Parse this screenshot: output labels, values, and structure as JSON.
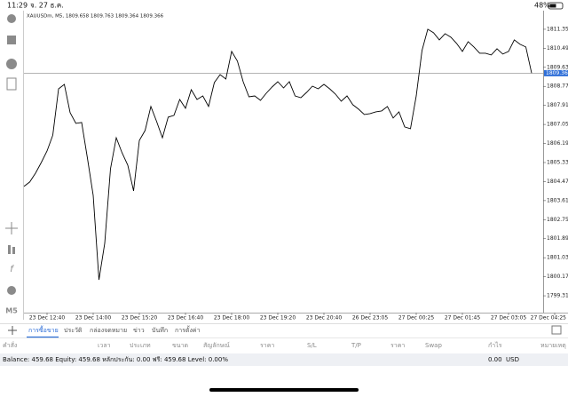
{
  "status_bar": {
    "time": "11:29",
    "date": "จ. 27 ธ.ค.",
    "battery": "48%"
  },
  "sidebar": {
    "timeframe": "M5"
  },
  "chart_data": {
    "type": "line",
    "header": "XAUUSDm, M5, 1809.658 1809.763 1809.364 1809.366",
    "categories": [
      null,
      null,
      null,
      null,
      "23 Dec 12:40",
      null,
      null,
      null,
      null,
      null,
      null,
      null,
      "23 Dec 14:00",
      null,
      null,
      null,
      null,
      null,
      null,
      null,
      "23 Dec 15:20",
      null,
      null,
      null,
      null,
      null,
      null,
      null,
      "23 Dec 16:40",
      null,
      null,
      null,
      null,
      null,
      null,
      null,
      "23 Dec 18:00",
      null,
      null,
      null,
      null,
      null,
      null,
      null,
      "23 Dec 19:20",
      null,
      null,
      null,
      null,
      null,
      null,
      null,
      "23 Dec 20:40",
      null,
      null,
      null,
      null,
      null,
      null,
      null,
      "26 Dec 23:05",
      null,
      null,
      null,
      null,
      null,
      null,
      null,
      "27 Dec 00:25",
      null,
      null,
      null,
      null,
      null,
      null,
      null,
      "27 Dec 01:45",
      null,
      null,
      null,
      null,
      null,
      null,
      null,
      "27 Dec 03:05",
      null,
      null,
      null,
      null,
      null,
      null,
      null,
      "27 Dec 04:25"
    ],
    "values": [
      1804.25,
      1804.45,
      1804.85,
      1805.33,
      1805.85,
      1806.57,
      1808.66,
      1808.86,
      1807.58,
      1807.1,
      1807.14,
      1805.53,
      1803.85,
      1800.03,
      1801.68,
      1805.05,
      1806.45,
      1805.77,
      1805.21,
      1804.05,
      1806.33,
      1806.78,
      1807.86,
      1807.18,
      1806.45,
      1807.38,
      1807.46,
      1808.18,
      1807.78,
      1808.62,
      1808.18,
      1808.34,
      1807.86,
      1808.94,
      1809.3,
      1809.1,
      1810.35,
      1809.91,
      1808.98,
      1808.3,
      1808.34,
      1808.14,
      1808.46,
      1808.74,
      1808.98,
      1808.7,
      1808.98,
      1808.34,
      1808.26,
      1808.5,
      1808.78,
      1808.66,
      1808.86,
      1808.66,
      1808.42,
      1808.1,
      1808.34,
      1807.94,
      1807.74,
      1807.5,
      1807.54,
      1807.62,
      1807.66,
      1807.86,
      1807.34,
      1807.62,
      1806.94,
      1806.86,
      1808.34,
      1810.39,
      1811.35,
      1811.19,
      1810.87,
      1811.15,
      1810.99,
      1810.71,
      1810.35,
      1810.79,
      1810.55,
      1810.27,
      1810.27,
      1810.19,
      1810.47,
      1810.23,
      1810.35,
      1810.87,
      1810.67,
      1810.55,
      1809.37,
      null,
      null,
      null,
      null
    ],
    "color": "#000000",
    "price_line": {
      "value": 1809.366,
      "label": "1809.366"
    },
    "ylim": [
      1798.55,
      1812.19
    ],
    "yticks": [
      {
        "value": 1811.35,
        "label": "1811.350"
      },
      {
        "value": 1810.49,
        "label": "1810.490"
      },
      {
        "value": 1809.63,
        "label": "1809.630"
      },
      {
        "value": 1808.77,
        "label": "1808.770"
      },
      {
        "value": 1807.91,
        "label": "1807.910"
      },
      {
        "value": 1807.05,
        "label": "1807.050"
      },
      {
        "value": 1806.19,
        "label": "1806.190"
      },
      {
        "value": 1805.33,
        "label": "1805.330"
      },
      {
        "value": 1804.47,
        "label": "1804.470"
      },
      {
        "value": 1803.61,
        "label": "1803.610"
      },
      {
        "value": 1802.75,
        "label": "1802.750"
      },
      {
        "value": 1801.89,
        "label": "1801.890"
      },
      {
        "value": 1801.03,
        "label": "1801.030"
      },
      {
        "value": 1800.17,
        "label": "1800.170"
      },
      {
        "value": 1799.31,
        "label": "1799.310"
      }
    ],
    "grid": false
  },
  "tabs": [
    "การซื้อขาย",
    "ประวัติ",
    "กล่องจดหมาย",
    "ข่าว",
    "บันทึก",
    "การตั้งค่า"
  ],
  "table": {
    "columns": [
      "คำสั่ง",
      "เวลา",
      "ประเภท",
      "ขนาด",
      "สัญลักษณ์",
      "ราคา",
      "S/L",
      "T/P",
      "ราคา",
      "Swap",
      "กำไร",
      "หมายเหตุ"
    ]
  },
  "account": {
    "summary": "Balance: 459.68 Equity: 459.68 หลักประกัน: 0.00 ฟรี: 459.68 Level: 0.00%",
    "profit": "0.00",
    "currency": "USD"
  }
}
